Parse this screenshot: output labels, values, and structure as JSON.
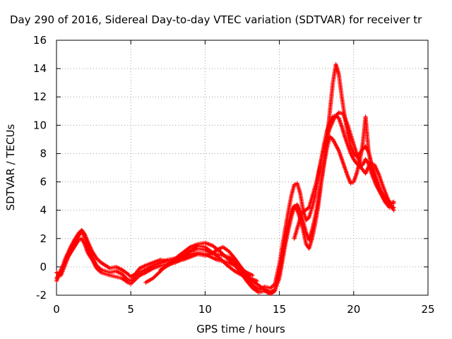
{
  "chart_data": {
    "type": "scatter",
    "title": "Day 290 of 2016, Sidereal Day-to-day VTEC variation (SDTVAR) for receiver tr",
    "xlabel": "GPS time / hours",
    "ylabel": "SDTVAR / TECUs",
    "xlim": [
      0,
      25
    ],
    "ylim": [
      -2,
      16
    ],
    "xticks": [
      "0",
      "5",
      "10",
      "15",
      "20",
      "25"
    ],
    "yticks": [
      "-2",
      "0",
      "2",
      "4",
      "6",
      "8",
      "10",
      "12",
      "14",
      "16"
    ],
    "grid": true,
    "legend": "none",
    "marker": "plus",
    "color": "#ff0000",
    "series": [
      {
        "x": [
          0,
          0.3,
          0.6,
          0.9,
          1.2,
          1.5,
          1.7,
          1.9,
          2.1,
          2.4,
          2.7,
          3.0,
          3.3,
          3.6,
          4.0,
          4.4,
          4.8,
          5.0,
          5.3,
          5.6,
          6.0,
          6.5,
          7.0,
          7.5,
          8.0,
          8.5,
          9.0,
          9.5,
          10.0,
          10.4,
          10.8,
          11.2,
          11.6,
          12.0,
          12.4,
          12.8,
          13.2,
          13.6,
          14.0,
          14.4,
          14.7,
          15.0,
          15.2,
          15.4,
          15.6,
          15.8,
          16.0,
          16.2,
          16.4,
          16.6,
          16.8,
          17.0,
          17.2,
          17.4,
          17.6,
          17.8,
          18.0,
          18.2,
          18.4,
          18.6,
          18.8,
          19.0,
          19.2,
          19.4,
          19.6,
          19.8,
          20.0,
          20.2,
          20.4,
          20.6,
          20.8,
          21.0,
          21.2,
          21.5,
          21.8,
          22.1,
          22.4,
          22.7
        ],
        "y": [
          -0.4,
          -0.6,
          0.2,
          1.0,
          1.6,
          2.2,
          2.5,
          2.1,
          1.4,
          0.7,
          0.1,
          -0.2,
          -0.3,
          -0.4,
          -0.3,
          -0.5,
          -0.9,
          -1.0,
          -0.7,
          -0.4,
          -0.2,
          0.1,
          0.3,
          0.5,
          0.6,
          0.8,
          1.1,
          1.3,
          1.2,
          1.0,
          0.9,
          0.8,
          0.7,
          0.4,
          -0.1,
          -0.7,
          -1.3,
          -1.6,
          -1.4,
          -1.5,
          -1.2,
          0.2,
          1.5,
          2.7,
          3.9,
          5.0,
          5.8,
          5.9,
          5.2,
          4.0,
          3.3,
          3.5,
          4.2,
          5.0,
          6.2,
          7.5,
          8.6,
          9.6,
          10.2,
          10.6,
          10.7,
          10.5,
          9.9,
          9.2,
          8.6,
          8.0,
          7.6,
          7.3,
          7.1,
          7.2,
          7.6,
          7.3,
          6.6,
          5.8,
          5.2,
          4.6,
          4.2,
          4.2
        ]
      },
      {
        "x": [
          0,
          0.3,
          0.6,
          0.9,
          1.2,
          1.5,
          1.7,
          1.9,
          2.1,
          2.4,
          2.7,
          3.0,
          3.3,
          3.6,
          4.0,
          4.4,
          4.8,
          5.0,
          5.3,
          5.6,
          6.0,
          6.5,
          7.0,
          7.5,
          8.0,
          8.5,
          9.0,
          9.5,
          10.0,
          10.4,
          10.8,
          11.2,
          11.6,
          12.0,
          12.4,
          12.8,
          13.2,
          13.6,
          14.0,
          14.4,
          14.7,
          15.0,
          15.2,
          15.4,
          15.6,
          15.8,
          16.0,
          16.2,
          16.4,
          16.6,
          16.8,
          17.0,
          17.2,
          17.4,
          17.6,
          17.8,
          18.0,
          18.2,
          18.4,
          18.6,
          18.8,
          19.0,
          19.2,
          19.4,
          19.6,
          19.8,
          20.0,
          20.2,
          20.4,
          20.6,
          20.8,
          21.0,
          21.2,
          21.5,
          21.8,
          22.1,
          22.4,
          22.7
        ],
        "y": [
          -0.8,
          -0.3,
          0.6,
          1.3,
          1.9,
          2.4,
          2.6,
          2.3,
          1.8,
          1.1,
          0.6,
          0.3,
          0.1,
          -0.1,
          0.0,
          -0.2,
          -0.5,
          -0.7,
          -0.5,
          -0.1,
          0.1,
          0.3,
          0.5,
          0.4,
          0.4,
          0.5,
          0.7,
          0.9,
          0.8,
          0.9,
          1.2,
          1.4,
          1.1,
          0.6,
          0.0,
          -0.5,
          -1.0,
          -1.3,
          -1.6,
          -1.8,
          -1.6,
          -0.8,
          0.4,
          1.6,
          2.6,
          3.5,
          4.2,
          4.4,
          3.9,
          3.2,
          2.4,
          1.9,
          2.6,
          3.5,
          4.6,
          6.0,
          7.4,
          9.0,
          11.0,
          13.0,
          14.3,
          13.6,
          12.0,
          10.6,
          9.4,
          8.5,
          8.0,
          7.8,
          8.0,
          8.3,
          8.5,
          8.1,
          7.3,
          6.3,
          5.4,
          4.8,
          4.4,
          4.5
        ]
      },
      {
        "x": [
          0,
          0.3,
          0.6,
          0.9,
          1.2,
          1.5,
          1.7,
          1.9,
          2.1,
          2.4,
          2.7,
          3.0,
          3.3,
          3.6,
          4.0,
          4.4,
          4.8,
          5.0,
          5.3,
          5.6,
          6.0,
          6.5,
          7.0,
          7.5,
          8.0,
          8.5,
          9.0,
          9.5,
          10.0,
          10.4,
          10.8,
          11.2,
          11.6,
          12.0,
          12.4,
          12.8,
          13.2,
          13.6,
          14.0,
          14.4,
          14.7,
          15.0,
          15.2,
          15.4,
          15.6,
          15.8,
          16.0,
          16.2,
          16.4,
          16.6,
          16.8,
          17.0,
          17.2,
          17.4,
          17.6,
          17.8,
          18.0,
          18.2,
          18.4,
          18.6,
          18.8,
          19.0,
          19.2,
          19.4,
          19.6,
          19.8,
          20.0,
          20.2,
          20.4,
          20.6,
          20.8,
          21.0,
          21.2,
          21.5,
          21.8,
          22.1,
          22.4,
          22.7
        ],
        "y": [
          -1.0,
          -0.2,
          0.4,
          0.9,
          1.4,
          1.9,
          2.0,
          1.6,
          1.0,
          0.5,
          -0.1,
          -0.4,
          -0.5,
          -0.6,
          -0.7,
          -0.8,
          -1.1,
          -1.2,
          -0.9,
          -0.6,
          -0.4,
          -0.1,
          0.1,
          0.2,
          0.3,
          0.6,
          0.9,
          1.0,
          0.9,
          0.7,
          0.5,
          0.4,
          0.3,
          0.1,
          -0.4,
          -1.0,
          -1.5,
          -1.8,
          -1.7,
          -1.9,
          -1.7,
          -0.4,
          0.8,
          1.9,
          3.0,
          3.9,
          4.3,
          4.0,
          3.4,
          2.6,
          1.6,
          1.3,
          2.0,
          3.0,
          4.2,
          5.8,
          7.2,
          8.4,
          9.2,
          9.0,
          8.6,
          8.2,
          7.6,
          7.0,
          6.4,
          5.9,
          6.0,
          6.6,
          7.4,
          8.6,
          10.6,
          8.2,
          7.1,
          6.2,
          5.4,
          4.9,
          4.5,
          4.6
        ]
      },
      {
        "x": [
          6.0,
          6.5,
          7.0,
          7.5,
          8.0,
          8.5,
          9.0,
          9.5,
          10.0,
          10.5,
          11.0,
          11.5,
          12.0,
          12.4,
          12.8,
          13.2
        ],
        "y": [
          -1.1,
          -0.8,
          -0.3,
          0.2,
          0.6,
          1.0,
          1.4,
          1.6,
          1.7,
          1.5,
          1.1,
          0.6,
          0.2,
          -0.1,
          -0.4,
          -0.6
        ]
      },
      {
        "x": [
          7.0,
          7.5,
          8.0,
          8.5,
          9.0,
          9.5,
          10.0,
          10.5,
          11.0,
          11.5,
          12.0,
          12.5,
          13.0,
          13.5
        ],
        "y": [
          -0.2,
          0.1,
          0.4,
          0.7,
          1.1,
          1.5,
          1.4,
          1.0,
          0.6,
          0.1,
          -0.3,
          -0.6,
          -0.8,
          -1.0
        ]
      },
      {
        "x": [
          16.0,
          16.5,
          17.0,
          17.5,
          17.8,
          18.1,
          18.4,
          18.7,
          19.0,
          19.3,
          19.6,
          19.9,
          20.2,
          20.5,
          20.8,
          21.1,
          21.4,
          21.7,
          22.0,
          22.3,
          22.7
        ],
        "y": [
          2.0,
          3.8,
          4.2,
          6.0,
          7.5,
          8.8,
          9.8,
          10.5,
          10.9,
          10.8,
          10.0,
          9.0,
          8.0,
          7.0,
          6.6,
          7.3,
          7.2,
          6.5,
          5.6,
          4.8,
          4.0
        ]
      }
    ]
  }
}
